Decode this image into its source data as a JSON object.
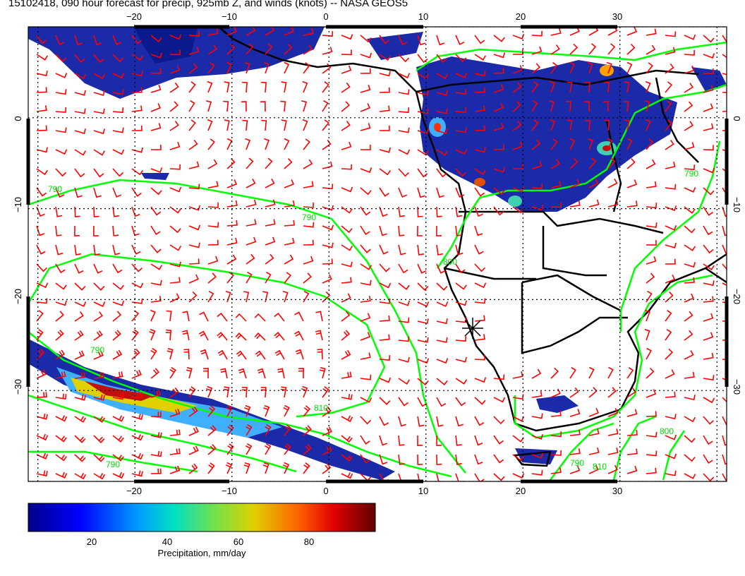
{
  "title": "15102418, 090 hour forecast for precip, 925mb Z, and winds (knots) -- NASA GEOS5",
  "map": {
    "lon_ticks_top": [
      "−20",
      "−10",
      "0",
      "10",
      "20",
      "30"
    ],
    "lon_ticks_bottom": [
      "−20",
      "−10",
      "0",
      "10",
      "20",
      "30"
    ],
    "lat_ticks_left": [
      "0",
      "−10",
      "−20",
      "−30"
    ],
    "lat_ticks_right": [
      "0",
      "−10",
      "−20",
      "−30"
    ],
    "lon_range": [
      -31,
      41
    ],
    "lat_range": [
      -40,
      10
    ],
    "contour_labels": [
      "790",
      "790",
      "790",
      "800",
      "810",
      "790",
      "790",
      "810",
      "800",
      "790"
    ],
    "colors": {
      "wind_barbs": "#ff0000",
      "height_contours": "#00ff00",
      "coastlines": "#000000",
      "grid": "#000000"
    }
  },
  "colorbar": {
    "label": "Precipitation, mm/day",
    "ticks": [
      "20",
      "40",
      "60",
      "80"
    ],
    "range": [
      0,
      100
    ],
    "tick_values": [
      20,
      40,
      60,
      80
    ]
  }
}
